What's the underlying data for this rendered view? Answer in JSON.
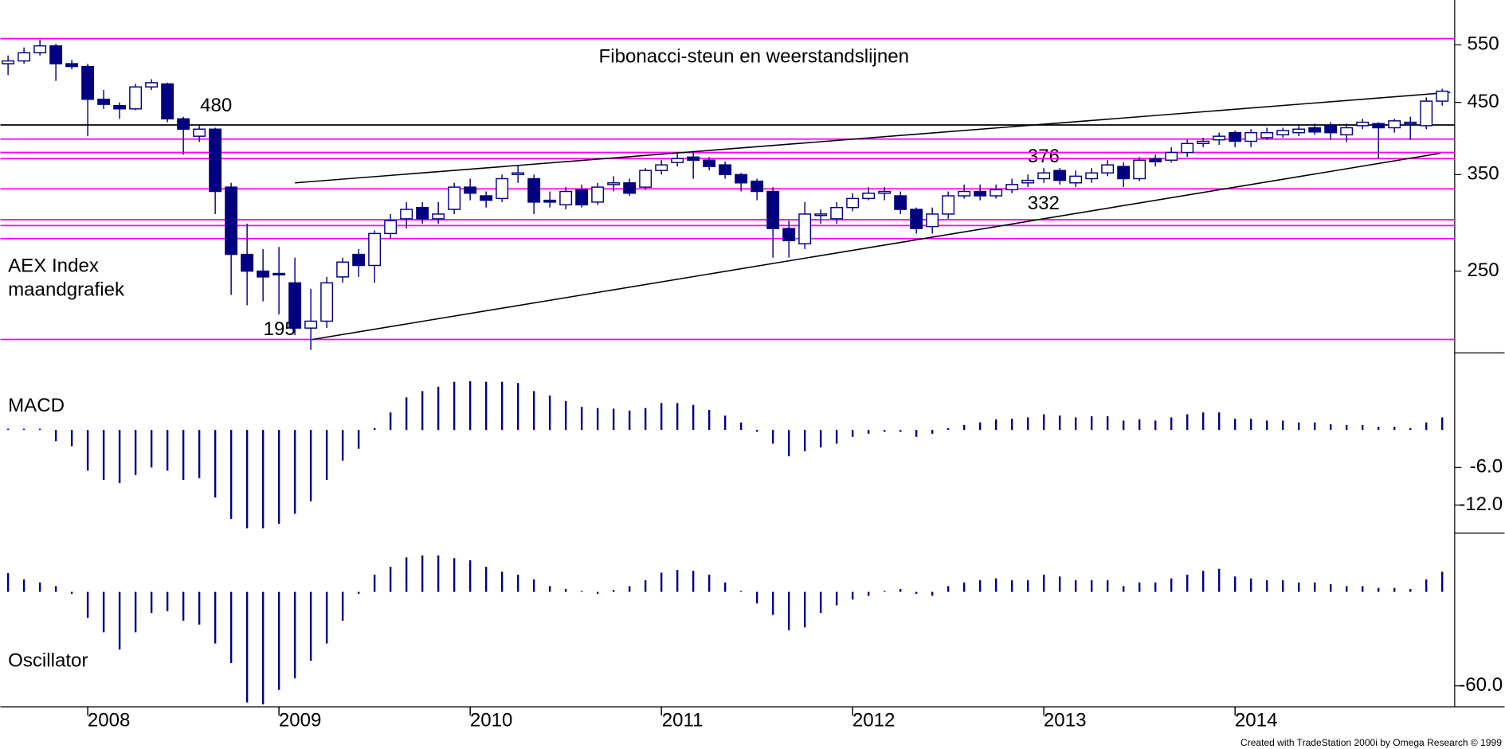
{
  "chart_data": [
    {
      "type": "candlestick",
      "title": "Fibonacci-steun en weerstandslijnen",
      "title_color": "#ff00ff",
      "label": [
        "AEX Index",
        "maandgrafiek"
      ],
      "annotations": [
        {
          "text": "480"
        },
        {
          "text": "195"
        },
        {
          "text": "376"
        },
        {
          "text": "332"
        }
      ],
      "categories": [
        null,
        null,
        null,
        null,
        null,
        "2008",
        null,
        null,
        null,
        null,
        null,
        null,
        null,
        null,
        null,
        null,
        null,
        "2009",
        null,
        null,
        null,
        null,
        null,
        null,
        null,
        null,
        null,
        null,
        null,
        "2010",
        null,
        null,
        null,
        null,
        null,
        null,
        null,
        null,
        null,
        null,
        null,
        "2011",
        null,
        null,
        null,
        null,
        null,
        null,
        null,
        null,
        null,
        null,
        null,
        "2012",
        null,
        null,
        null,
        null,
        null,
        null,
        null,
        null,
        null,
        null,
        null,
        "2013",
        null,
        null,
        null,
        null,
        null,
        null,
        null,
        null,
        null,
        null,
        null,
        "2014",
        null,
        null,
        null,
        null,
        null,
        null,
        null,
        null,
        null,
        null,
        null,
        null,
        null
      ],
      "open": [
        515,
        520,
        535,
        548,
        515,
        510,
        455,
        445,
        440,
        475,
        480,
        425,
        400,
        410,
        335,
        265,
        250,
        248,
        240,
        205,
        210,
        245,
        265,
        255,
        285,
        300,
        312,
        300,
        310,
        335,
        325,
        322,
        350,
        345,
        320,
        315,
        332,
        318,
        338,
        340,
        335,
        355,
        365,
        372,
        368,
        362,
        350,
        342,
        330,
        290,
        275,
        305,
        300,
        312,
        322,
        328,
        325,
        310,
        292,
        305,
        325,
        330,
        325,
        332,
        340,
        345,
        355,
        340,
        345,
        352,
        360,
        345,
        370,
        368,
        378,
        390,
        395,
        405,
        393,
        398,
        402,
        405,
        412,
        415,
        402,
        415,
        418,
        412,
        420,
        415,
        452
      ],
      "high": [
        530,
        545,
        560,
        552,
        522,
        515,
        470,
        450,
        480,
        488,
        482,
        428,
        415,
        412,
        340,
        295,
        270,
        272,
        262,
        235,
        245,
        262,
        270,
        288,
        305,
        318,
        318,
        318,
        340,
        345,
        330,
        350,
        362,
        350,
        330,
        335,
        338,
        340,
        348,
        345,
        358,
        368,
        378,
        380,
        372,
        366,
        352,
        345,
        335,
        298,
        318,
        310,
        318,
        328,
        335,
        335,
        330,
        312,
        312,
        330,
        338,
        338,
        338,
        345,
        350,
        358,
        358,
        355,
        358,
        368,
        365,
        372,
        375,
        385,
        395,
        398,
        405,
        408,
        410,
        412,
        412,
        415,
        418,
        420,
        418,
        425,
        420,
        425,
        428,
        458,
        472
      ],
      "low": [
        495,
        515,
        530,
        485,
        505,
        400,
        440,
        425,
        438,
        470,
        420,
        375,
        392,
        305,
        230,
        222,
        225,
        215,
        200,
        190,
        205,
        240,
        245,
        240,
        280,
        290,
        295,
        295,
        305,
        320,
        312,
        318,
        340,
        305,
        312,
        310,
        312,
        315,
        330,
        325,
        332,
        350,
        360,
        345,
        355,
        345,
        330,
        320,
        262,
        262,
        270,
        295,
        295,
        308,
        320,
        320,
        305,
        285,
        285,
        300,
        322,
        320,
        322,
        328,
        335,
        340,
        338,
        335,
        340,
        348,
        335,
        342,
        360,
        365,
        372,
        385,
        388,
        385,
        385,
        395,
        398,
        400,
        402,
        395,
        392,
        410,
        370,
        405,
        395,
        410,
        445
      ],
      "close": [
        520,
        535,
        548,
        515,
        510,
        455,
        447,
        440,
        475,
        482,
        425,
        410,
        410,
        330,
        265,
        250,
        245,
        247,
        205,
        210,
        240,
        258,
        255,
        285,
        298,
        310,
        300,
        305,
        335,
        328,
        320,
        345,
        352,
        318,
        318,
        330,
        315,
        335,
        340,
        328,
        355,
        362,
        370,
        368,
        360,
        350,
        340,
        330,
        290,
        278,
        305,
        305,
        312,
        322,
        328,
        330,
        310,
        290,
        305,
        325,
        330,
        325,
        332,
        338,
        343,
        352,
        343,
        348,
        352,
        362,
        345,
        368,
        366,
        378,
        390,
        393,
        400,
        393,
        405,
        405,
        408,
        410,
        406,
        405,
        412,
        420,
        412,
        422,
        420,
        452,
        468
      ],
      "up_color": "#ffffff",
      "down_color": "#000080",
      "log_scale": true,
      "ylim": [
        188,
        643
      ],
      "yticks": [
        250,
        350,
        450,
        550
      ],
      "hlines": [
        {
          "value": 562,
          "color": "#ff00ff"
        },
        {
          "value": 396,
          "color": "#ff00ff"
        },
        {
          "value": 378,
          "color": "#ff00ff"
        },
        {
          "value": 370,
          "color": "#ff00ff"
        },
        {
          "value": 333,
          "color": "#ff00ff"
        },
        {
          "value": 299,
          "color": "#ff00ff"
        },
        {
          "value": 293,
          "color": "#ff00ff"
        },
        {
          "value": 280,
          "color": "#ff00ff"
        },
        {
          "value": 197,
          "color": "#ff00ff"
        },
        {
          "value": 416,
          "color": "#000000"
        }
      ],
      "trendlines": [
        {
          "x": [
            18,
            90.5
          ],
          "y": [
            340,
            466
          ],
          "color": "#000000"
        },
        {
          "x": [
            19.1,
            89.9
          ],
          "y": [
            197,
            377
          ],
          "color": "#000000"
        }
      ]
    },
    {
      "type": "bar",
      "title": "MACD",
      "color": "#000080",
      "values": [
        0.2,
        0.2,
        0.2,
        -1.8,
        -2.6,
        -6.5,
        -8,
        -8.5,
        -7.2,
        -6,
        -6.5,
        -8,
        -7.7,
        -10.8,
        -14.2,
        -15.7,
        -15.7,
        -15,
        -13.4,
        -11.4,
        -8,
        -4.9,
        -3,
        0.3,
        2.8,
        5.2,
        6.2,
        6.9,
        7.7,
        7.8,
        7.7,
        7.7,
        7.5,
        6.2,
        5.5,
        4.6,
        3.7,
        3.5,
        3.4,
        3.1,
        3.5,
        4.3,
        4.3,
        4,
        3.2,
        2.3,
        1.2,
        -0.3,
        -2.2,
        -4.2,
        -3.4,
        -2.8,
        -2.2,
        -1.1,
        -0.6,
        -0.3,
        -0.3,
        -1.1,
        -0.6,
        0.3,
        0.8,
        1.2,
        1.7,
        1.8,
        2,
        2.5,
        2.3,
        2,
        2.2,
        2.2,
        1.5,
        1.7,
        1.5,
        2,
        2.5,
        2.8,
        2.8,
        1.8,
        1.8,
        1.5,
        1.5,
        1.2,
        1.2,
        0.9,
        0.8,
        0.8,
        0.5,
        0.5,
        0.3,
        1.2,
        2
      ],
      "ylim": [
        -16.5,
        12
      ],
      "yticks": [
        {
          "value": -6,
          "label": "-6.0"
        },
        {
          "value": -12,
          "label": "-12.0"
        }
      ]
    },
    {
      "type": "bar",
      "title": "Oscillator",
      "color": "#000080",
      "values": [
        12,
        8,
        6,
        3.7,
        -1.2,
        -16.6,
        -25.8,
        -36.8,
        -25.8,
        -13.5,
        -12.3,
        -18.4,
        -20.9,
        -33,
        -45.4,
        -70.6,
        -71.8,
        -62.6,
        -55.2,
        -44,
        -33,
        -18.4,
        -1.2,
        11,
        16,
        22,
        23.3,
        23.3,
        21.5,
        20.2,
        16,
        12.9,
        11,
        8,
        3.7,
        1.8,
        0,
        -1.2,
        1.2,
        3.7,
        7.4,
        12.3,
        14,
        13.5,
        11,
        6,
        0,
        -7.4,
        -14.7,
        -24.5,
        -22.7,
        -13.5,
        -8.6,
        -4.9,
        -2.5,
        0,
        1.8,
        -1.2,
        -2.5,
        3.7,
        6,
        7.4,
        8.6,
        7.4,
        7.4,
        11,
        9.8,
        7.4,
        7.4,
        7.4,
        3.7,
        6,
        6,
        8.6,
        11,
        13.5,
        14.7,
        9.8,
        8.6,
        7.4,
        7.4,
        6,
        6,
        4.9,
        3.7,
        3.7,
        2.5,
        2.5,
        1.8,
        8,
        12.9
      ],
      "ylim": [
        -74,
        35
      ],
      "yticks": [
        {
          "value": -60,
          "label": "-60.0"
        }
      ]
    }
  ],
  "footer": "Created with TradeStation 2000i by Omega Research © 1999"
}
